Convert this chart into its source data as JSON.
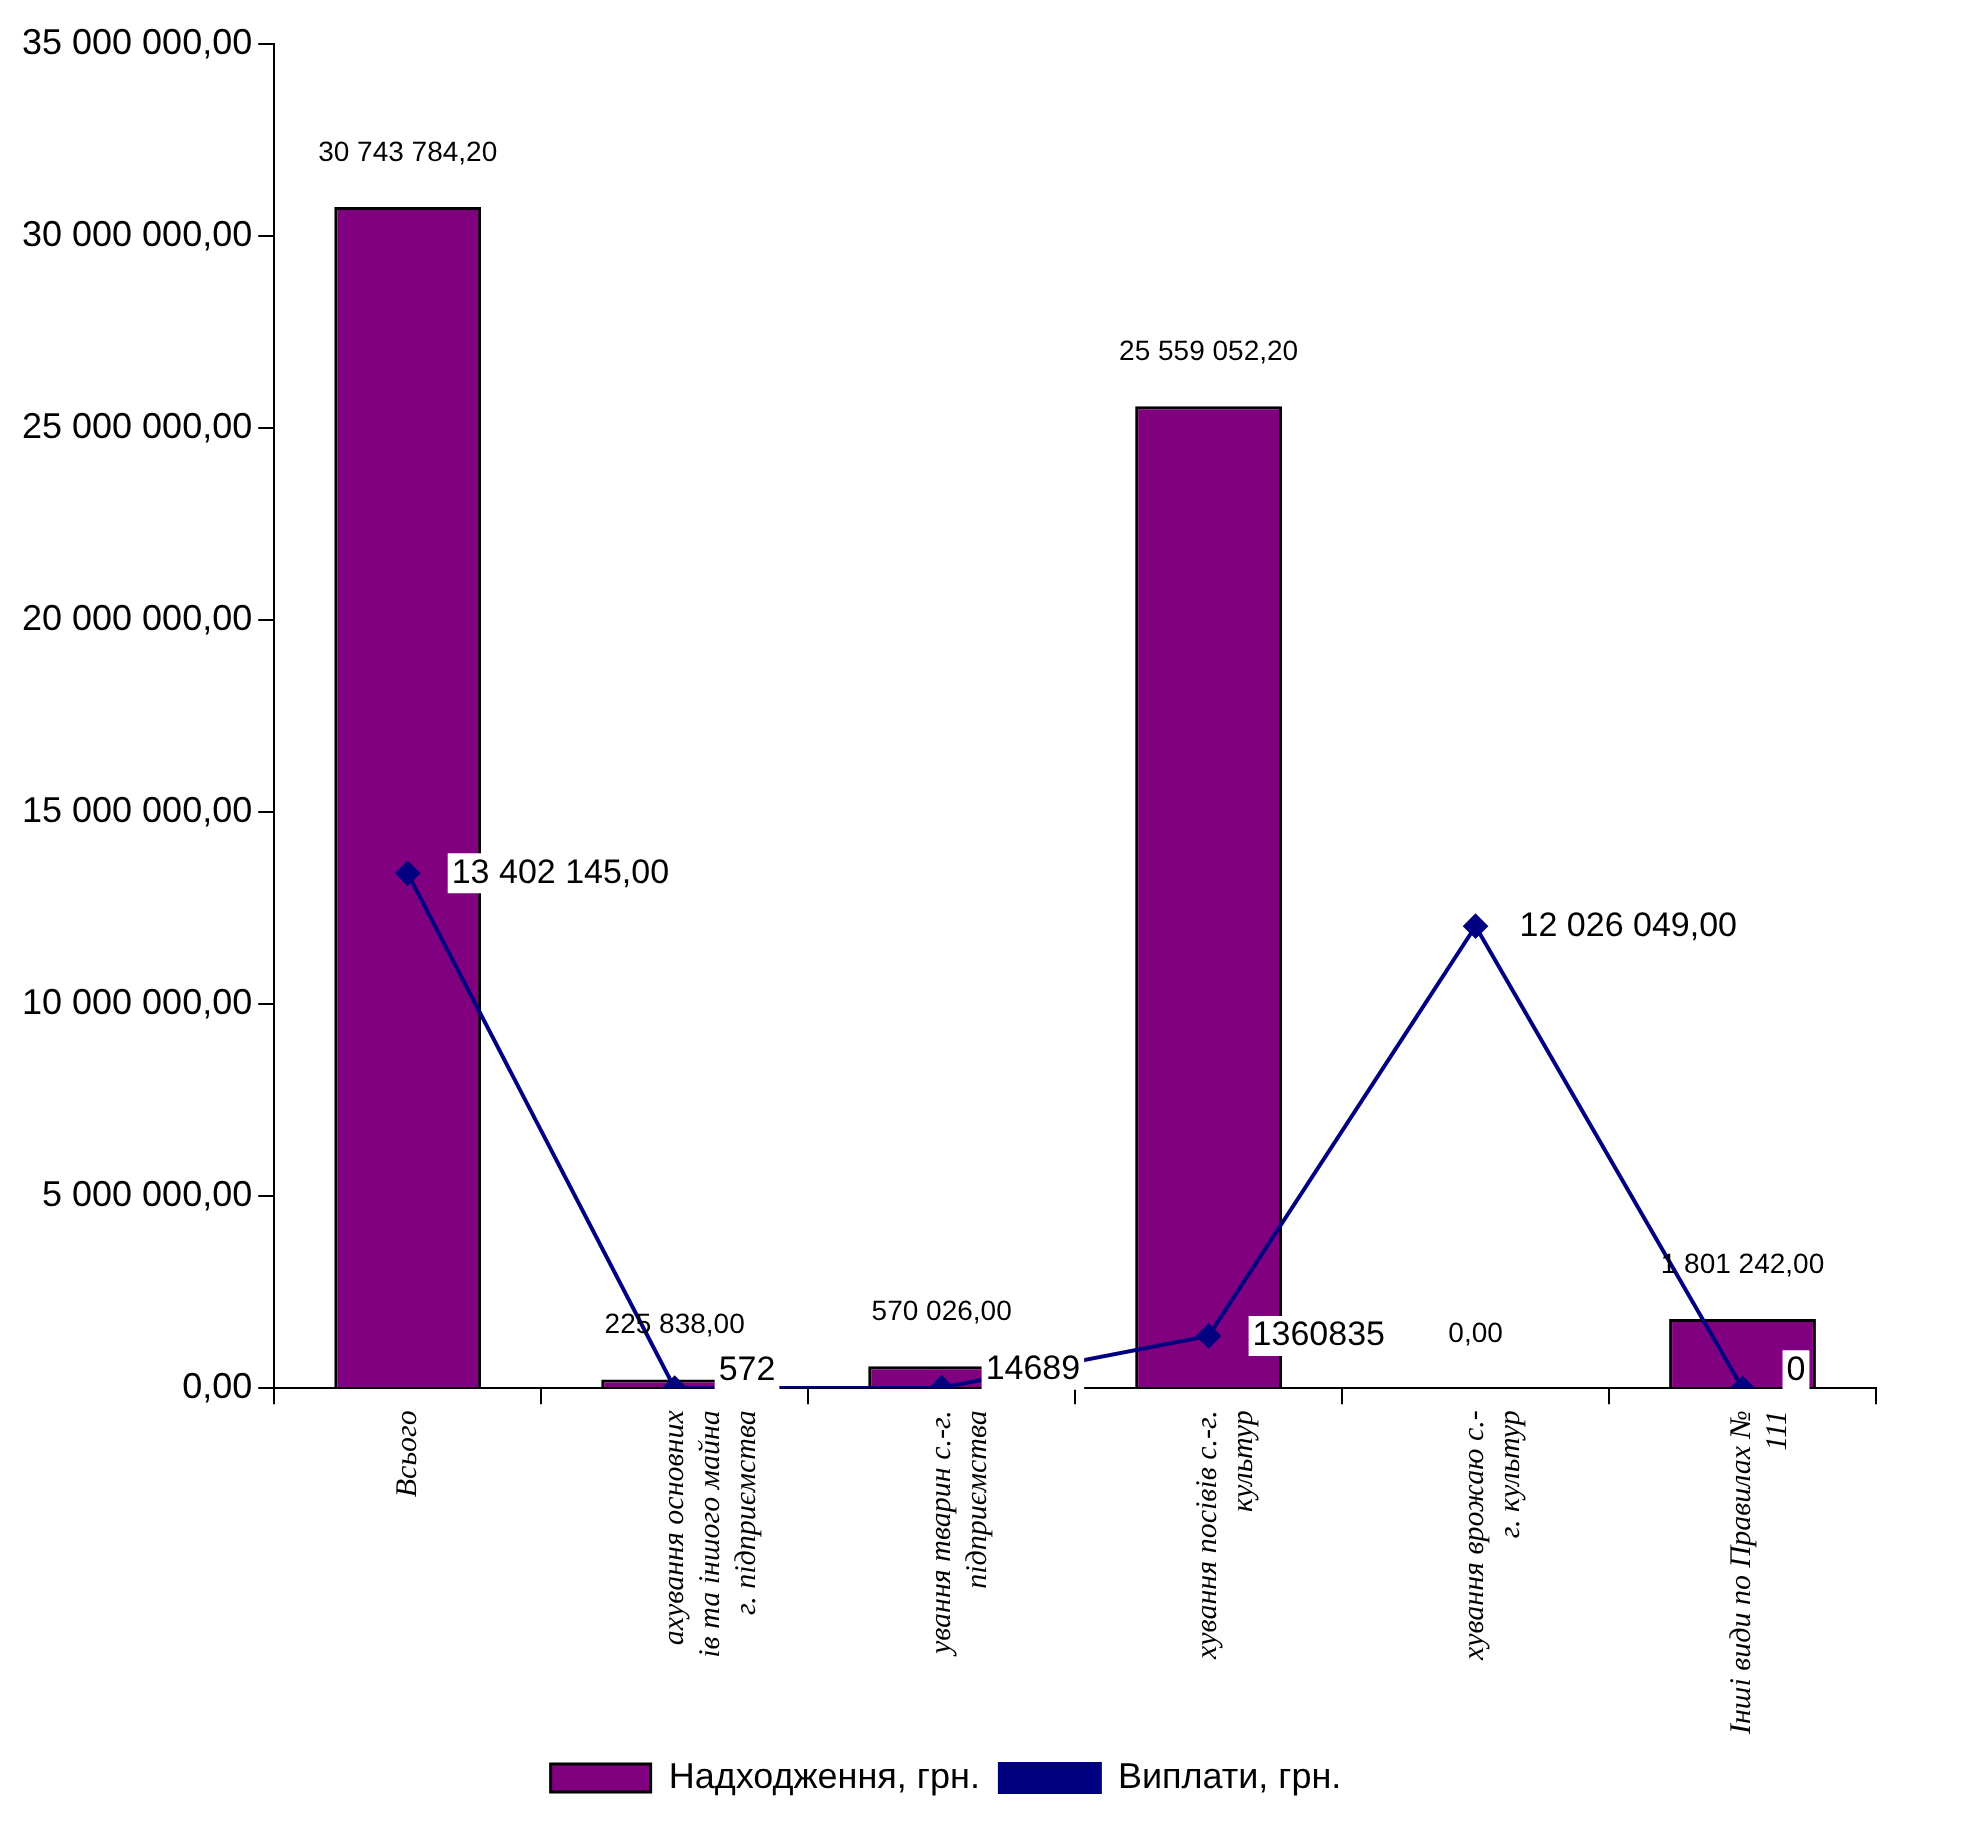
{
  "chart_data": {
    "type": "bar",
    "categories": [
      "Всього",
      "ахування основних\nів та іншого майна\nг. підприємства",
      "ування тварин с.-г.\nпідприємства",
      "хування посівів с.-г.\nкультур",
      "хування врожаю с.-\nг. культур",
      "Інші види по Правилах №\n111"
    ],
    "series": [
      {
        "name": "Надходження, грн.",
        "color": "#800080",
        "values": [
          30743784.2,
          225838,
          570026,
          25559052.2,
          0,
          1801242
        ],
        "value_labels": [
          "30 743 784,20",
          "225 838,00",
          "570 026,00",
          "25 559 052,20",
          "0,00",
          "1 801 242,00"
        ]
      },
      {
        "name": "Виплати, грн.",
        "type": "line",
        "color": "#000080",
        "marker": "diamond",
        "values": [
          13402145,
          572,
          14689,
          1360835,
          12026049,
          0
        ],
        "value_labels": [
          "13 402 145,00",
          "572",
          "14689",
          "1360835",
          "12 026 049,00",
          "0"
        ]
      }
    ],
    "ylim": [
      0,
      35000000
    ],
    "yticks": [
      {
        "value": 0,
        "label": "0,00"
      },
      {
        "value": 5000000,
        "label": "5 000 000,00"
      },
      {
        "value": 10000000,
        "label": "10 000 000,00"
      },
      {
        "value": 15000000,
        "label": "15 000 000,00"
      },
      {
        "value": 20000000,
        "label": "20 000 000,00"
      },
      {
        "value": 25000000,
        "label": "25 000 000,00"
      },
      {
        "value": 30000000,
        "label": "30 000 000,00"
      },
      {
        "value": 35000000,
        "label": "35 000 000,00"
      }
    ],
    "grid": false,
    "legend": "bottom"
  }
}
